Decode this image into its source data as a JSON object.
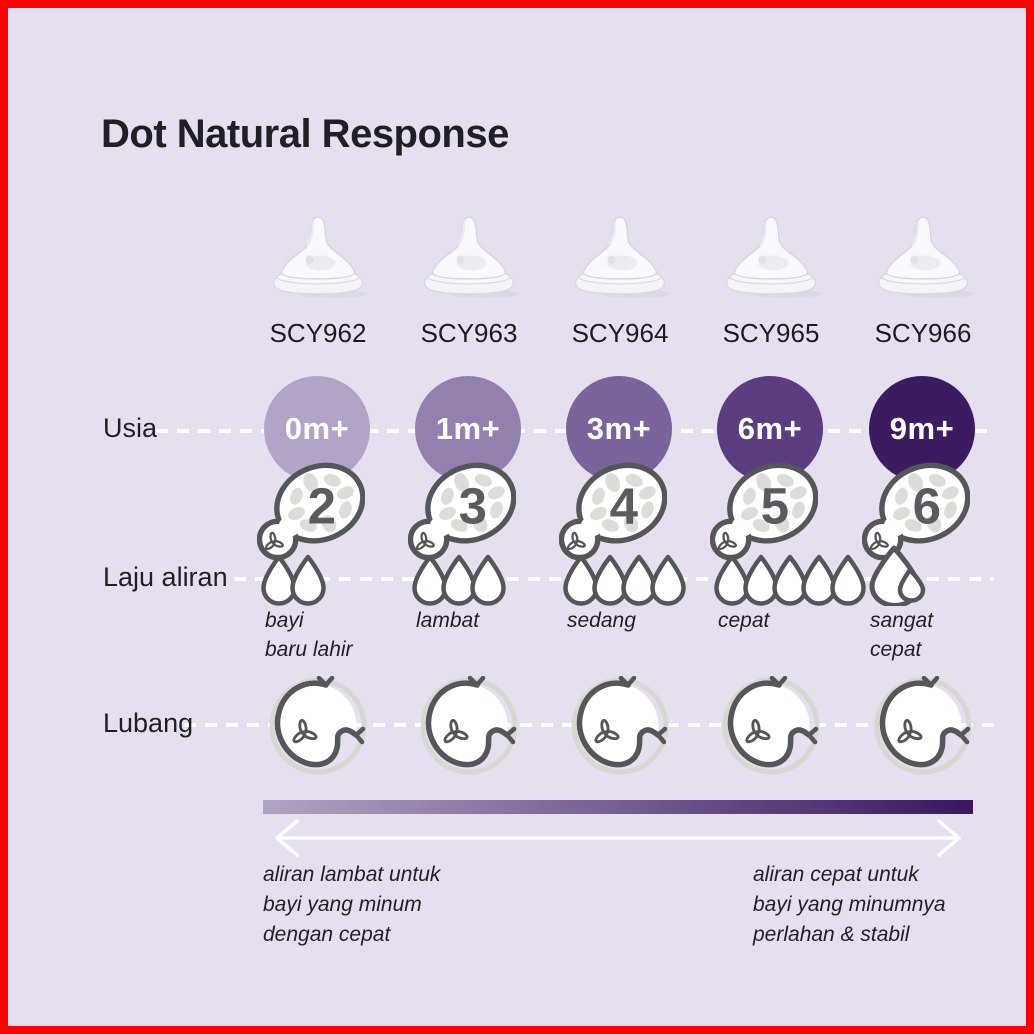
{
  "title": "Dot Natural Response",
  "row_labels": {
    "age": "Usia",
    "flow": "Laju aliran",
    "hole": "Lubang"
  },
  "columns": [
    {
      "model": "SCY962",
      "age": "0m+",
      "teat_number": "2",
      "drop_count": 2,
      "drop_style": "normal",
      "flow_text": "bayi\nbaru lahir",
      "age_circle_color": "#b3a4c7"
    },
    {
      "model": "SCY963",
      "age": "1m+",
      "teat_number": "3",
      "drop_count": 3,
      "drop_style": "normal",
      "flow_text": "lambat",
      "age_circle_color": "#9480ae"
    },
    {
      "model": "SCY964",
      "age": "3m+",
      "teat_number": "4",
      "drop_count": 4,
      "drop_style": "normal",
      "flow_text": "sedang",
      "age_circle_color": "#7b649b"
    },
    {
      "model": "SCY965",
      "age": "6m+",
      "teat_number": "5",
      "drop_count": 5,
      "drop_style": "normal",
      "flow_text": "cepat",
      "age_circle_color": "#5b3d80"
    },
    {
      "model": "SCY966",
      "age": "9m+",
      "teat_number": "6",
      "drop_count": 1,
      "drop_style": "large",
      "flow_text": "sangat\ncepat",
      "age_circle_color": "#3c1c61"
    }
  ],
  "flow_scale": {
    "gradient_from": "#b1a4c3",
    "gradient_to": "#3a1760",
    "left_note": "aliran lambat untuk\nbayi yang minum\ndengan cepat",
    "right_note": "aliran cepat untuk\nbayi yang minumnya\nperlahan & stabil"
  },
  "colors": {
    "background": "#e5dff0",
    "frame_red": "#f90505",
    "ink": "#221e26",
    "icon_stroke": "#55565a",
    "dash_line": "#ffffff"
  },
  "icons": [
    "teat-photo",
    "teat-number-icon",
    "droplet-icon",
    "droplet-large-icon",
    "hole-circle-icon",
    "valve-trefoil-icon",
    "double-arrow-icon"
  ]
}
